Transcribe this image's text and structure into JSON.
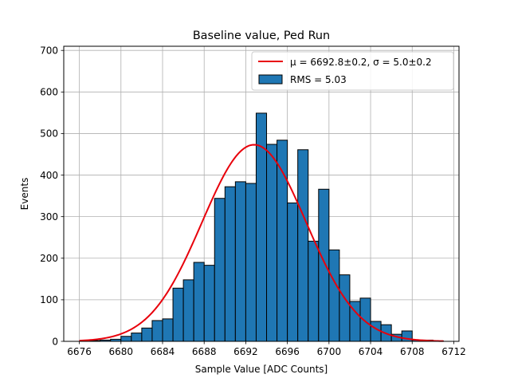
{
  "chart_data": {
    "type": "bar",
    "title": "Baseline value, Ped Run",
    "xlabel": "Sample Value [ADC Counts]",
    "ylabel": "Events",
    "xlim": [
      6674.5,
      6712.5
    ],
    "ylim": [
      0,
      710
    ],
    "xticks": [
      "6676",
      "6680",
      "6684",
      "6688",
      "6692",
      "6696",
      "6700",
      "6704",
      "6708",
      "6712"
    ],
    "yticks": [
      "0",
      "100",
      "200",
      "300",
      "400",
      "500",
      "600",
      "700"
    ],
    "grid": true,
    "legend_position": "top-right",
    "bin_edges_start": 6677.0,
    "bin_width": 1.0,
    "histogram": {
      "name": "RMS = 5.03",
      "color": "#1f77b4",
      "values": [
        2,
        3,
        5,
        12,
        20,
        32,
        50,
        54,
        128,
        148,
        190,
        183,
        344,
        372,
        384,
        380,
        549,
        474,
        484,
        333,
        461,
        241,
        366,
        220,
        160,
        96,
        104,
        48,
        40,
        17,
        25,
        3,
        3,
        1
      ]
    },
    "fit": {
      "name": "μ = 6692.8±0.2, σ = 5.0±0.2",
      "color": "#e8000b",
      "mu": 6692.8,
      "sigma": 5.0,
      "amplitude": 473,
      "x_range": [
        6676,
        6711
      ]
    }
  }
}
